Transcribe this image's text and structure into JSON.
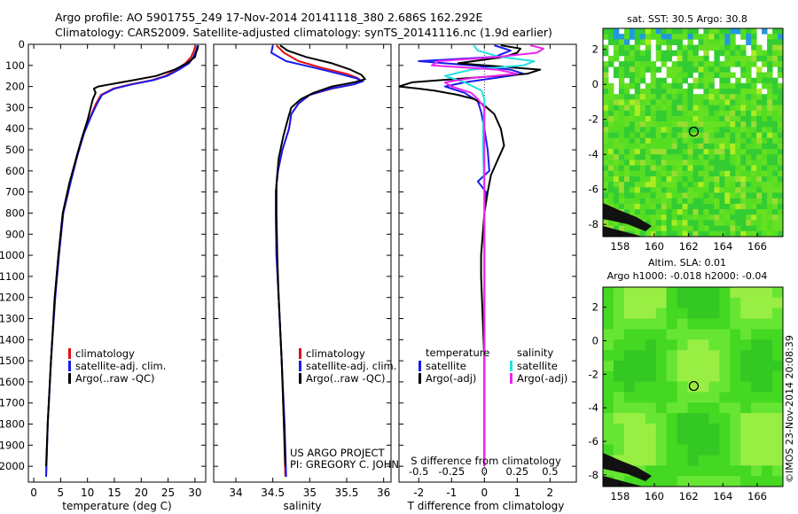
{
  "header": {
    "title_line1": "Argo profile: AO 5901755_249 17-Nov-2014 20141118_380 2.686S 162.292E",
    "title_line2": "Climatology: CARS2009. Satellite-adjusted climatology: synTS_20141116.nc (1.9d earlier)"
  },
  "colors": {
    "climatology": "#e01010",
    "satellite": "#1a1aee",
    "argo": "#000000",
    "sat_salinity": "#22e0e0",
    "argo_salinity": "#ee22ee",
    "map_green": "#44dd22",
    "land": "#111111"
  },
  "chart_data": [
    {
      "type": "line",
      "id": "temperature",
      "xlabel": "temperature (deg C)",
      "ylim": [
        2075,
        0
      ],
      "xlim": [
        -1,
        32
      ],
      "xticks": [
        0,
        5,
        10,
        15,
        20,
        25,
        30
      ],
      "yticks": [
        0,
        100,
        200,
        300,
        400,
        500,
        600,
        700,
        800,
        900,
        1000,
        1100,
        1200,
        1300,
        1400,
        1500,
        1600,
        1700,
        1800,
        1900,
        2000
      ],
      "legend": [
        "climatology",
        "satellite-adj. clim.",
        "Argo(..raw -QC)"
      ],
      "series": [
        {
          "name": "climatology",
          "color": "red",
          "depth": [
            5,
            30,
            60,
            90,
            120,
            150,
            170,
            190,
            210,
            240,
            280,
            340,
            420,
            520,
            650,
            800,
            1000,
            1200,
            1500,
            1800,
            2050
          ],
          "values": [
            30.1,
            29.8,
            29.3,
            28.2,
            26.5,
            24.5,
            22,
            18,
            14.8,
            12.5,
            11.6,
            10.6,
            9.3,
            8.1,
            6.8,
            5.4,
            4.6,
            3.9,
            3.2,
            2.6,
            2.3
          ]
        },
        {
          "name": "satellite-adj. clim.",
          "color": "blue",
          "depth": [
            5,
            30,
            60,
            90,
            120,
            150,
            170,
            190,
            210,
            240,
            280,
            340,
            420,
            520,
            650,
            800,
            1000,
            1200,
            1500,
            1800,
            2050
          ],
          "values": [
            30.5,
            30.2,
            29.7,
            28.9,
            27,
            24.8,
            22.2,
            18.3,
            15,
            12.7,
            11.8,
            10.7,
            9.4,
            8.2,
            6.9,
            5.5,
            4.7,
            4,
            3.2,
            2.6,
            2.3
          ]
        },
        {
          "name": "Argo(..raw -QC)",
          "color": "black",
          "depth": [
            5,
            20,
            40,
            60,
            90,
            120,
            150,
            170,
            190,
            200,
            210,
            230,
            260,
            300,
            360,
            440,
            540,
            660,
            800,
            1000,
            1200,
            1500,
            1800,
            2000
          ],
          "values": [
            30.6,
            30.5,
            30.2,
            30,
            28.5,
            26.2,
            22.8,
            18.5,
            14.2,
            12,
            11.2,
            11.5,
            11,
            10.6,
            10,
            9,
            7.9,
            6.6,
            5.4,
            4.6,
            3.9,
            3.2,
            2.6,
            2.3
          ]
        }
      ]
    },
    {
      "type": "line",
      "id": "salinity",
      "xlabel": "salinity",
      "ylim": [
        2075,
        0
      ],
      "xlim": [
        33.7,
        36.1
      ],
      "xticks": [
        34,
        34.5,
        35,
        35.5,
        36
      ],
      "legend": [
        "climatology",
        "satellite-adj. clim.",
        "Argo(..raw -QC)"
      ],
      "series": [
        {
          "name": "climatology",
          "color": "red",
          "depth": [
            5,
            40,
            80,
            110,
            140,
            160,
            175,
            190,
            210,
            240,
            280,
            330,
            400,
            500,
            600,
            700,
            800,
            1000,
            1200,
            1500,
            1800,
            2050
          ],
          "values": [
            34.55,
            34.65,
            34.85,
            35.15,
            35.5,
            35.65,
            35.7,
            35.6,
            35.3,
            35,
            34.85,
            34.75,
            34.72,
            34.63,
            34.57,
            34.54,
            34.54,
            34.55,
            34.58,
            34.62,
            34.65,
            34.67
          ]
        },
        {
          "name": "satellite-adj. clim.",
          "color": "blue",
          "depth": [
            5,
            40,
            80,
            110,
            140,
            160,
            175,
            190,
            210,
            240,
            280,
            330,
            400,
            500,
            600,
            700,
            800,
            1000,
            1200,
            1500,
            1800,
            2050
          ],
          "values": [
            34.5,
            34.48,
            34.68,
            35.05,
            35.4,
            35.62,
            35.72,
            35.6,
            35.28,
            35,
            34.85,
            34.75,
            34.72,
            34.63,
            34.57,
            34.54,
            34.54,
            34.55,
            34.58,
            34.62,
            34.66,
            34.68
          ]
        },
        {
          "name": "Argo(..raw -QC)",
          "color": "black",
          "depth": [
            5,
            30,
            60,
            90,
            120,
            145,
            165,
            180,
            200,
            230,
            260,
            300,
            360,
            440,
            540,
            660,
            800,
            1000,
            1200,
            1500,
            1800,
            2000
          ],
          "values": [
            34.6,
            34.7,
            34.95,
            35.3,
            35.55,
            35.7,
            35.75,
            35.6,
            35.3,
            35.05,
            34.88,
            34.75,
            34.7,
            34.64,
            34.58,
            34.55,
            34.55,
            34.56,
            34.58,
            34.62,
            34.65,
            34.67
          ]
        }
      ]
    },
    {
      "type": "line",
      "id": "difference",
      "xlabel": "T difference from climatology",
      "xlabel_top": "S difference from climatology",
      "ylim": [
        2075,
        0
      ],
      "xlim": [
        -2.6,
        2.8
      ],
      "xticks": [
        -2,
        -1,
        0,
        1,
        2
      ],
      "xticks_top": [
        "-0.5",
        "-0.25",
        "0",
        "0.25",
        "0.5"
      ],
      "legend_temperature": {
        "title": "temperature",
        "items": [
          "satellite",
          "Argo(-adj)"
        ]
      },
      "legend_salinity": {
        "title": "salinity",
        "items": [
          "satellite",
          "Argo(-adj)"
        ]
      },
      "series": [
        {
          "name": "T satellite",
          "color": "blue",
          "depth": [
            5,
            30,
            60,
            80,
            100,
            120,
            140,
            160,
            180,
            200,
            230,
            270,
            320,
            400,
            500,
            600,
            650,
            700,
            800,
            1000,
            1500,
            2000
          ],
          "values": [
            0.3,
            0.8,
            0.3,
            -2.0,
            -0.4,
            0.8,
            1.2,
            0.3,
            -0.6,
            -1.2,
            -0.6,
            -0.2,
            -0.1,
            0,
            0.1,
            0.15,
            -0.2,
            0.05,
            0,
            0,
            0,
            0
          ]
        },
        {
          "name": "T Argo(-adj)",
          "color": "black",
          "depth": [
            5,
            20,
            40,
            60,
            90,
            120,
            140,
            160,
            180,
            200,
            210,
            220,
            240,
            260,
            290,
            330,
            400,
            480,
            550,
            620,
            700,
            800,
            1000,
            1100,
            1500,
            2000
          ],
          "values": [
            0.5,
            1.1,
            1.0,
            0.6,
            -0.8,
            1.7,
            1.3,
            -0.5,
            -2.2,
            -2.6,
            -2.0,
            -1.5,
            -0.8,
            -0.3,
            0,
            0.3,
            0.5,
            0.6,
            0.4,
            0.2,
            0.1,
            0,
            -0.1,
            -0.1,
            0,
            0
          ]
        },
        {
          "name": "S satellite",
          "color": "cyan",
          "depth": [
            5,
            30,
            60,
            80,
            100,
            120,
            150,
            180,
            220,
            260,
            300,
            400,
            500,
            700,
            1000,
            1500,
            2000
          ],
          "values": [
            -0.08,
            -0.05,
            0.12,
            0.38,
            0.3,
            -0.1,
            -0.3,
            -0.15,
            -0.02,
            0,
            0,
            -0.01,
            -0.01,
            0,
            0,
            0,
            0
          ]
        },
        {
          "name": "S Argo(-adj)",
          "color": "magenta",
          "depth": [
            5,
            20,
            40,
            60,
            80,
            100,
            120,
            140,
            160,
            180,
            200,
            230,
            260,
            300,
            400,
            600,
            1000,
            1500,
            2000
          ],
          "values": [
            0.35,
            0.45,
            0.4,
            0.1,
            -0.35,
            -0.4,
            0.1,
            0.25,
            -0.1,
            -0.3,
            -0.25,
            -0.1,
            -0.05,
            0,
            0,
            0,
            0,
            0,
            0
          ]
        }
      ]
    },
    {
      "type": "heatmap",
      "id": "sst_map",
      "title": "sat. SST: 30.5 Argo: 30.8",
      "xticks": [
        158,
        160,
        162,
        164,
        166
      ],
      "yticks": [
        2,
        0,
        -2,
        -4,
        -6,
        -8
      ],
      "xlim": [
        157,
        167.5
      ],
      "ylim": [
        -8.7,
        3.2
      ],
      "argo_position": [
        162.3,
        -2.7
      ]
    },
    {
      "type": "heatmap",
      "id": "sla_map",
      "title": "Altim. SLA: 0.01",
      "subtitle": "Argo h1000: -0.018 h2000: -0.04",
      "xticks": [
        158,
        160,
        162,
        164,
        166
      ],
      "yticks": [
        2,
        0,
        -2,
        -4,
        -6,
        -8
      ],
      "xlim": [
        157,
        167.5
      ],
      "ylim": [
        -8.7,
        3.2
      ],
      "argo_position": [
        162.3,
        -2.7
      ]
    }
  ],
  "annotations": {
    "project_line1": "US ARGO PROJECT",
    "project_line2": "PI: GREGORY C. JOHNSON",
    "imos_stamp": "©IMOS 23-Nov-2014 20:08:39"
  }
}
